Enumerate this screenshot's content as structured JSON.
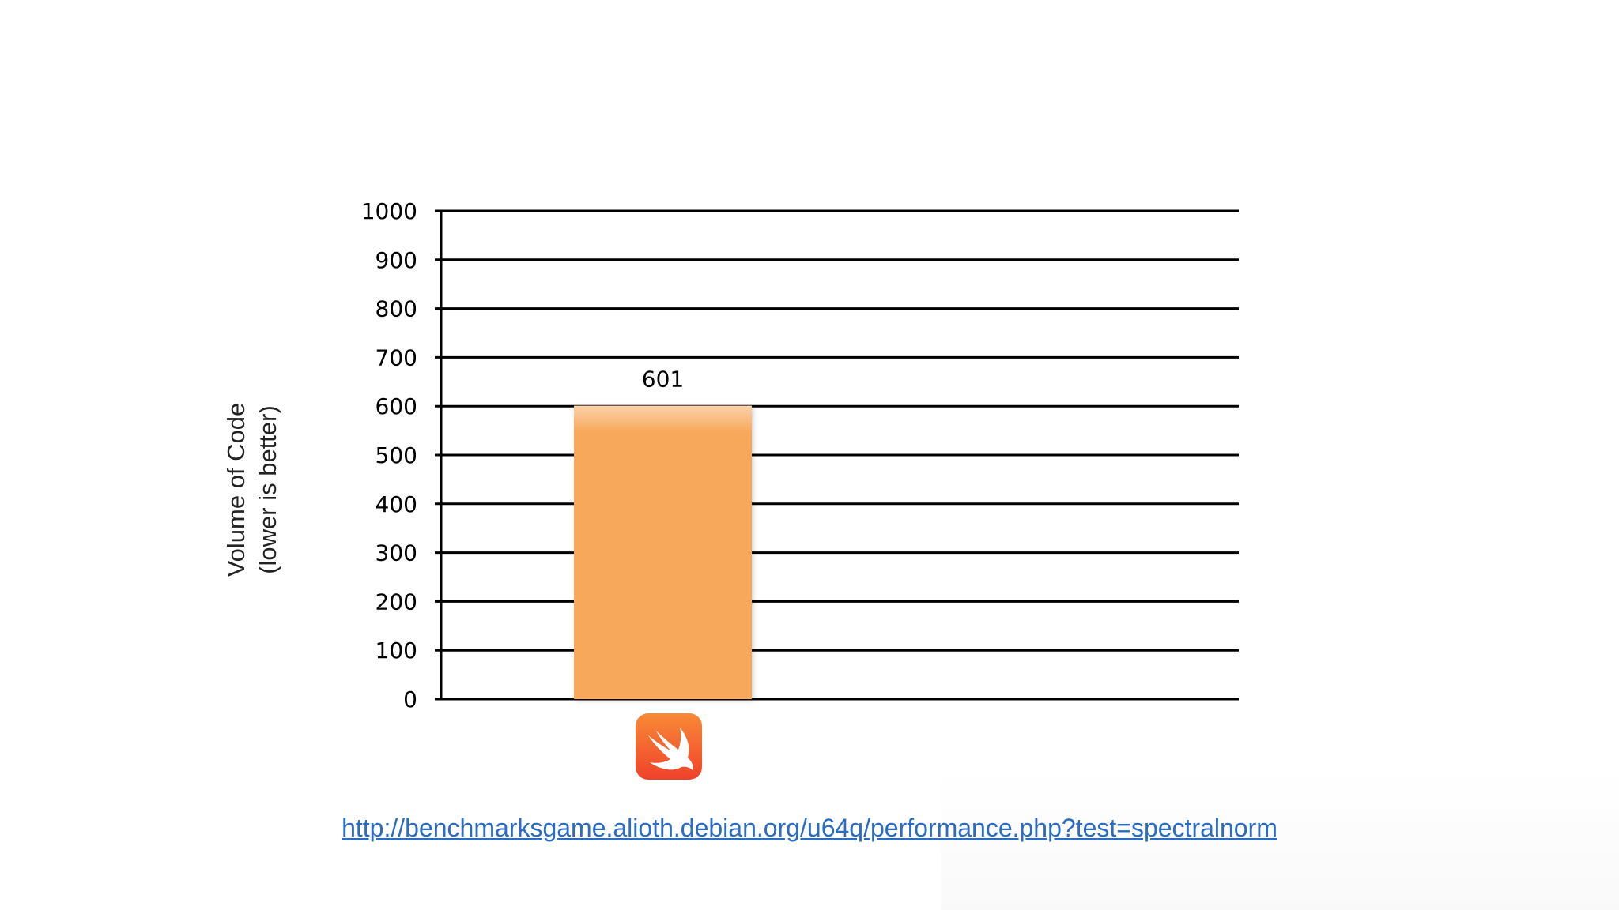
{
  "chart_data": {
    "type": "bar",
    "categories": [
      "Swift"
    ],
    "values": [
      601
    ],
    "data_labels": [
      "601"
    ],
    "title": "",
    "xlabel": "",
    "ylabel": "Volume of Code",
    "ylabel_sub": "(lower is better)",
    "ylim": [
      0,
      1000
    ],
    "yticks": [
      0,
      100,
      200,
      300,
      400,
      500,
      600,
      700,
      800,
      900,
      1000
    ],
    "grid": true,
    "legend": "none",
    "bar_color": "#f7a85a",
    "gridline_color": "#000000"
  },
  "category_icon": "swift-logo-icon",
  "source_url": "http://benchmarksgame.alioth.debian.org/u64q/performance.php?test=spectralnorm",
  "link_color": "#2a6cc4"
}
